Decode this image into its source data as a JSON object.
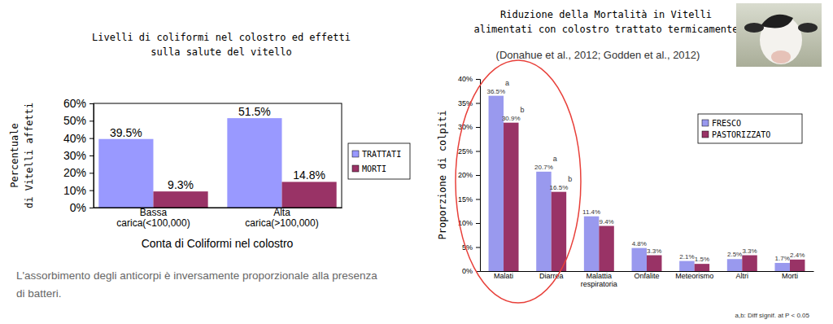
{
  "chart_data": [
    {
      "type": "bar",
      "title": [
        "Livelli di coliformi nel colostro ed effetti",
        "sulla salute del vitello"
      ],
      "categories": [
        "Bassa carica(<100,000)",
        "Alta carica(>100,000)"
      ],
      "series": [
        {
          "name": "TRATTATI",
          "color": "#9999ff",
          "values": [
            39.5,
            51.5
          ],
          "value_labels": [
            "39.5%",
            "51.5%"
          ]
        },
        {
          "name": "MORTI",
          "color": "#993366",
          "values": [
            9.3,
            14.8
          ],
          "value_labels": [
            "9.3%",
            "14.8%"
          ]
        }
      ],
      "x_label": "Conta di Coliformi nel colostro",
      "y_label": [
        "Percentuale",
        "di Vitelli affetti"
      ],
      "ylim": [
        0,
        60
      ],
      "yticks": [
        {
          "value": 0,
          "label": "0%"
        },
        {
          "value": 10,
          "label": "10%"
        },
        {
          "value": 20,
          "label": "20%"
        },
        {
          "value": 30,
          "label": "30%"
        },
        {
          "value": 40,
          "label": "40%"
        },
        {
          "value": 50,
          "label": "50%"
        },
        {
          "value": 60,
          "label": "60%"
        }
      ],
      "grid": false,
      "legend": "right",
      "data_labels": true,
      "annotations": [
        "L'assorbimento degli anticorpi è inversamente proporzionale alla presenza di batteri."
      ]
    },
    {
      "type": "bar",
      "title": [
        "Riduzione della Mortalità in Vitelli",
        "alimentati con colostro trattato termicamente"
      ],
      "subtitle": "(Donahue et al., 2012; Godden et al., 2012)",
      "categories": [
        "Malati",
        "Diarrea",
        "Malattia respiratoria",
        "Onfalite",
        "Meteorismo",
        "Altri",
        "Morti"
      ],
      "series": [
        {
          "name": "FRESCO",
          "color": "#9999ee",
          "values": [
            36.5,
            20.7,
            11.4,
            4.8,
            2.1,
            2.5,
            1.7
          ],
          "value_labels": [
            "36.5%",
            "20.7%",
            "11.4%",
            "4.8%",
            "2.1%",
            "2.5%",
            "1.7%"
          ],
          "significance": [
            "a",
            "a",
            null,
            null,
            null,
            null,
            null
          ]
        },
        {
          "name": "PASTORIZZATO",
          "color": "#993366",
          "values": [
            30.9,
            16.5,
            9.4,
            3.3,
            1.5,
            3.3,
            2.4
          ],
          "value_labels": [
            "30.9%",
            "16.5%",
            "9.4%",
            "3.3%",
            "1.5%",
            "3.3%",
            "2.4%"
          ],
          "significance": [
            "b",
            "b",
            null,
            null,
            null,
            null,
            null
          ]
        }
      ],
      "y_label": "Proporzione di colpiti",
      "ylim": [
        0,
        40
      ],
      "yticks": [
        {
          "value": 0,
          "label": "0%"
        },
        {
          "value": 5,
          "label": "5%"
        },
        {
          "value": 10,
          "label": "10%"
        },
        {
          "value": 15,
          "label": "15%"
        },
        {
          "value": 20,
          "label": "20%"
        },
        {
          "value": 25,
          "label": "25%"
        },
        {
          "value": 30,
          "label": "30%"
        },
        {
          "value": 35,
          "label": "35%"
        },
        {
          "value": 40,
          "label": "40%"
        }
      ],
      "grid": false,
      "legend": "top-right",
      "data_labels": true,
      "annotations": [
        "a,b: Diff signif. at P < 0.05"
      ]
    }
  ]
}
